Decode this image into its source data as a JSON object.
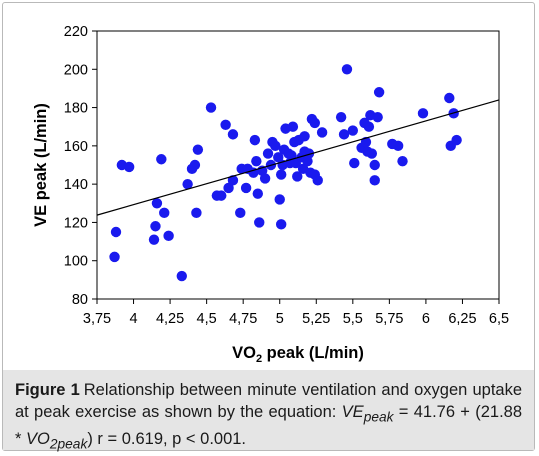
{
  "chart_data": {
    "type": "scatter",
    "xlabel": "VO2 peak (L/min)",
    "xlabel_main": "VO",
    "xlabel_sub": "2",
    "xlabel_rest": " peak (L/min)",
    "ylabel": "VE peak (L/min)",
    "xlim": [
      3.75,
      6.5
    ],
    "ylim": [
      80,
      220
    ],
    "x_ticks": [
      3.75,
      4,
      4.25,
      4.5,
      4.75,
      5,
      5.25,
      5.5,
      5.75,
      6,
      6.25,
      6.5
    ],
    "x_tick_labels": [
      "3,75",
      "4",
      "4,25",
      "4,5",
      "4,75",
      "5",
      "5,25",
      "5,5",
      "5,75",
      "6",
      "6,25",
      "6,5"
    ],
    "y_ticks": [
      80,
      100,
      120,
      140,
      160,
      180,
      200,
      220
    ],
    "y_tick_labels": [
      "80",
      "100",
      "120",
      "140",
      "160",
      "180",
      "200",
      "220"
    ],
    "regression": {
      "intercept": 41.76,
      "slope": 21.88,
      "x_range": [
        3.75,
        6.5
      ]
    },
    "marker_color": "#1a1aee",
    "line_color": "#000000",
    "points": [
      [
        3.88,
        115
      ],
      [
        3.87,
        102
      ],
      [
        3.92,
        150
      ],
      [
        3.97,
        149
      ],
      [
        4.14,
        111
      ],
      [
        4.15,
        118
      ],
      [
        4.16,
        130
      ],
      [
        4.19,
        153
      ],
      [
        4.21,
        125
      ],
      [
        4.24,
        113
      ],
      [
        4.33,
        92
      ],
      [
        4.37,
        140
      ],
      [
        4.4,
        148
      ],
      [
        4.42,
        150
      ],
      [
        4.43,
        125
      ],
      [
        4.44,
        158
      ],
      [
        4.53,
        180
      ],
      [
        4.57,
        134
      ],
      [
        4.6,
        134
      ],
      [
        4.63,
        171
      ],
      [
        4.65,
        138
      ],
      [
        4.68,
        142
      ],
      [
        4.68,
        166
      ],
      [
        4.73,
        125
      ],
      [
        4.74,
        148
      ],
      [
        4.77,
        138
      ],
      [
        4.78,
        148
      ],
      [
        4.82,
        146
      ],
      [
        4.83,
        163
      ],
      [
        4.84,
        152
      ],
      [
        4.85,
        135
      ],
      [
        4.86,
        120
      ],
      [
        4.88,
        147
      ],
      [
        4.9,
        143
      ],
      [
        4.92,
        156
      ],
      [
        4.94,
        150
      ],
      [
        4.95,
        162
      ],
      [
        4.97,
        160
      ],
      [
        4.99,
        154
      ],
      [
        5.0,
        132
      ],
      [
        5.01,
        119
      ],
      [
        5.01,
        145
      ],
      [
        5.02,
        150
      ],
      [
        5.03,
        158
      ],
      [
        5.04,
        169
      ],
      [
        5.06,
        156
      ],
      [
        5.07,
        151
      ],
      [
        5.08,
        155
      ],
      [
        5.09,
        170
      ],
      [
        5.1,
        162
      ],
      [
        5.11,
        151
      ],
      [
        5.12,
        144
      ],
      [
        5.13,
        163
      ],
      [
        5.15,
        154
      ],
      [
        5.16,
        148
      ],
      [
        5.17,
        157
      ],
      [
        5.17,
        165
      ],
      [
        5.19,
        152
      ],
      [
        5.2,
        156
      ],
      [
        5.21,
        146
      ],
      [
        5.22,
        174
      ],
      [
        5.24,
        172
      ],
      [
        5.24,
        145
      ],
      [
        5.26,
        142
      ],
      [
        5.29,
        167
      ],
      [
        5.42,
        175
      ],
      [
        5.44,
        166
      ],
      [
        5.46,
        200
      ],
      [
        5.5,
        168
      ],
      [
        5.51,
        151
      ],
      [
        5.56,
        159
      ],
      [
        5.58,
        172
      ],
      [
        5.59,
        162
      ],
      [
        5.6,
        157
      ],
      [
        5.61,
        170
      ],
      [
        5.62,
        176
      ],
      [
        5.63,
        156
      ],
      [
        5.65,
        142
      ],
      [
        5.65,
        150
      ],
      [
        5.67,
        175
      ],
      [
        5.68,
        188
      ],
      [
        5.77,
        161
      ],
      [
        5.81,
        160
      ],
      [
        5.84,
        152
      ],
      [
        5.98,
        177
      ],
      [
        6.16,
        185
      ],
      [
        6.17,
        160
      ],
      [
        6.19,
        177
      ],
      [
        6.21,
        163
      ]
    ]
  },
  "caption": {
    "label": "Figure 1",
    "text_main": "Relationship between minute ventilation and oxygen uptake at peak exercise as shown by the equation:",
    "eq_lhs": "VE",
    "eq_lhs_sub": "peak",
    "eq_mid": " = 41.76 + (21.88 * ",
    "eq_vo": "VO",
    "eq_vo_sub": "2peak",
    "eq_r": ") r = 0.619, p < 0.001."
  }
}
